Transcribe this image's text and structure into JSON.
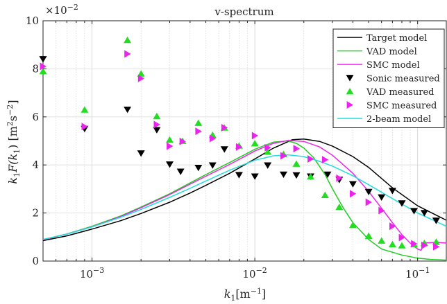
{
  "chart_data": {
    "type": "line",
    "title": "v-spectrum",
    "xlabel": "k",
    "xlabel_sub": "1",
    "xlabel_unit": "[m",
    "xlabel_unit_sup": "−1",
    "xlabel_unit_close": "]",
    "ylabel": "k",
    "ylabel_sub": "1",
    "ylabel_mid": "F(k",
    "ylabel_mid_sub": "1",
    "ylabel_unit": ") [m",
    "ylabel_unit_sup1": "2",
    "ylabel_unit_s": "s",
    "ylabel_unit_sup2": "−2",
    "ylabel_unit_close": "]",
    "x_scale": "log",
    "xlim": [
      0.0005,
      0.15
    ],
    "ylim": [
      0,
      0.1
    ],
    "y_multiplier": "×10",
    "y_multiplier_exp": "−2",
    "grid": true,
    "legend_position": "top-right",
    "x_ticks": [
      {
        "value": 0.001,
        "base": "10",
        "exp": "−3"
      },
      {
        "value": 0.01,
        "base": "10",
        "exp": "−2"
      },
      {
        "value": 0.1,
        "base": "10",
        "exp": "−1"
      }
    ],
    "y_ticks": [
      {
        "value": 0,
        "label": "0"
      },
      {
        "value": 0.02,
        "label": "2"
      },
      {
        "value": 0.04,
        "label": "4"
      },
      {
        "value": 0.06,
        "label": "6"
      },
      {
        "value": 0.08,
        "label": "8"
      },
      {
        "value": 0.1,
        "label": "10"
      }
    ],
    "lines": [
      {
        "name": "Target model",
        "color": "#000000",
        "x": [
          0.0005,
          0.0007,
          0.001,
          0.0015,
          0.002,
          0.003,
          0.004,
          0.005,
          0.007,
          0.01,
          0.013,
          0.017,
          0.02,
          0.025,
          0.03,
          0.04,
          0.05,
          0.07,
          0.1,
          0.15
        ],
        "y": [
          0.0085,
          0.0105,
          0.0133,
          0.0168,
          0.0198,
          0.0245,
          0.0283,
          0.0315,
          0.0365,
          0.0425,
          0.047,
          0.0505,
          0.0508,
          0.0498,
          0.0478,
          0.0435,
          0.039,
          0.0305,
          0.023,
          0.017
        ]
      },
      {
        "name": "VAD model",
        "color": "#22cc22",
        "x": [
          0.0005,
          0.0007,
          0.001,
          0.0015,
          0.002,
          0.003,
          0.004,
          0.005,
          0.007,
          0.01,
          0.013,
          0.016,
          0.018,
          0.02,
          0.023,
          0.027,
          0.03,
          0.035,
          0.04,
          0.05,
          0.06,
          0.08,
          0.1,
          0.12,
          0.15
        ],
        "y": [
          0.009,
          0.0113,
          0.0145,
          0.0188,
          0.0225,
          0.028,
          0.0325,
          0.036,
          0.041,
          0.0465,
          0.0495,
          0.05,
          0.049,
          0.047,
          0.043,
          0.036,
          0.03,
          0.022,
          0.016,
          0.009,
          0.005,
          0.0025,
          0.0012,
          0.0007,
          0.0004
        ]
      },
      {
        "name": "SMC model",
        "color": "#ee22ee",
        "x": [
          0.0005,
          0.0007,
          0.001,
          0.0015,
          0.002,
          0.003,
          0.004,
          0.005,
          0.007,
          0.01,
          0.013,
          0.016,
          0.02,
          0.025,
          0.03,
          0.035,
          0.04,
          0.05,
          0.06,
          0.07,
          0.08,
          0.09,
          0.1,
          0.105,
          0.11,
          0.13,
          0.15
        ],
        "y": [
          0.0089,
          0.0112,
          0.0143,
          0.0185,
          0.0222,
          0.0277,
          0.032,
          0.0353,
          0.0402,
          0.0458,
          0.049,
          0.0502,
          0.0498,
          0.0475,
          0.044,
          0.04,
          0.0365,
          0.029,
          0.022,
          0.016,
          0.011,
          0.0075,
          0.005,
          0.0045,
          0.0075,
          0.0078,
          0.0075
        ]
      },
      {
        "name": "2-beam model",
        "color": "#22dddd",
        "x": [
          0.0005,
          0.0007,
          0.001,
          0.0015,
          0.002,
          0.003,
          0.004,
          0.005,
          0.007,
          0.01,
          0.013,
          0.016,
          0.02,
          0.025,
          0.03,
          0.04,
          0.05,
          0.07,
          0.1,
          0.15
        ],
        "y": [
          0.009,
          0.0112,
          0.0142,
          0.0182,
          0.0215,
          0.0265,
          0.0303,
          0.0333,
          0.0378,
          0.042,
          0.0438,
          0.0442,
          0.0435,
          0.0415,
          0.0395,
          0.0355,
          0.0318,
          0.026,
          0.02,
          0.0145
        ]
      }
    ],
    "scatter": [
      {
        "name": "Sonic measured",
        "color": "#000000",
        "marker": "triangle-down",
        "x": [
          0.0005,
          0.0009,
          0.00165,
          0.002,
          0.0025,
          0.003,
          0.0035,
          0.0045,
          0.0055,
          0.0065,
          0.008,
          0.01,
          0.012,
          0.015,
          0.018,
          0.022,
          0.028,
          0.033,
          0.04,
          0.05,
          0.06,
          0.07,
          0.08,
          0.095,
          0.11,
          0.13
        ],
        "y": [
          0.084,
          0.055,
          0.063,
          0.0448,
          0.0545,
          0.0402,
          0.0372,
          0.0388,
          0.0398,
          0.0465,
          0.0358,
          0.0352,
          0.0398,
          0.036,
          0.0357,
          0.0352,
          0.036,
          0.0338,
          0.032,
          0.0288,
          0.0265,
          0.0292,
          0.024,
          0.0208,
          0.02,
          0.0168
        ]
      },
      {
        "name": "VAD measured",
        "color": "#22dd22",
        "marker": "triangle-up",
        "x": [
          0.0005,
          0.0009,
          0.00165,
          0.002,
          0.0025,
          0.003,
          0.0036,
          0.0045,
          0.0055,
          0.0065,
          0.008,
          0.01,
          0.012,
          0.015,
          0.018,
          0.022,
          0.027,
          0.033,
          0.04,
          0.05,
          0.06,
          0.07,
          0.08,
          0.095,
          0.11,
          0.13
        ],
        "y": [
          0.079,
          0.063,
          0.092,
          0.078,
          0.0603,
          0.0505,
          0.05,
          0.0575,
          0.0525,
          0.0555,
          0.048,
          0.049,
          0.0455,
          0.0445,
          0.0405,
          0.0352,
          0.0275,
          0.0225,
          0.015,
          0.0105,
          0.0085,
          0.007,
          0.0065,
          0.007,
          0.0075,
          0.008
        ]
      },
      {
        "name": "SMC measured",
        "color": "#ee22ee",
        "marker": "triangle-right",
        "x": [
          0.0005,
          0.0009,
          0.00165,
          0.002,
          0.0025,
          0.003,
          0.0036,
          0.0045,
          0.0055,
          0.0065,
          0.008,
          0.01,
          0.012,
          0.015,
          0.018,
          0.022,
          0.027,
          0.033,
          0.04,
          0.05,
          0.06,
          0.07,
          0.08,
          0.095,
          0.11,
          0.13
        ],
        "y": [
          0.081,
          0.056,
          0.0862,
          0.076,
          0.0568,
          0.0478,
          0.0498,
          0.054,
          0.051,
          0.0555,
          0.0475,
          0.0522,
          0.0472,
          0.0438,
          0.0468,
          0.0425,
          0.0422,
          0.0345,
          0.028,
          0.0245,
          0.021,
          0.0145,
          0.0098,
          0.0072,
          0.0065,
          0.006
        ]
      }
    ]
  }
}
